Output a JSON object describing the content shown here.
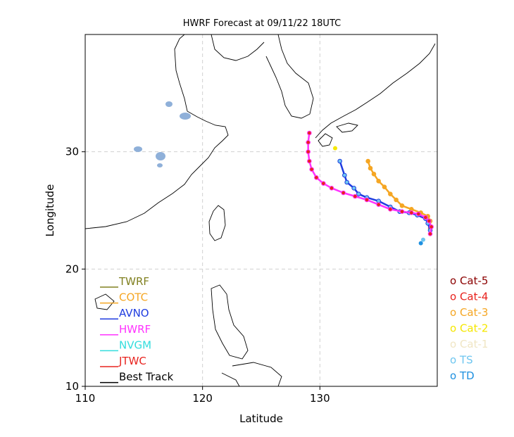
{
  "chart_data": {
    "type": "map-track",
    "title": "HWRF Forecast at 09/11/22 18UTC",
    "xlabel": "Latitude",
    "ylabel": "Longitude",
    "xlim": [
      110,
      140
    ],
    "ylim": [
      10,
      40
    ],
    "xticks": [
      110,
      120,
      130
    ],
    "yticks": [
      10,
      20,
      30
    ],
    "grid": true,
    "legend": [
      {
        "label": "TWRF",
        "color": "#808020"
      },
      {
        "label": "COTC",
        "color": "#f5a623"
      },
      {
        "label": "AVNO",
        "color": "#1f3ce0"
      },
      {
        "label": "HWRF",
        "color": "#ff33ff"
      },
      {
        "label": "NVGM",
        "color": "#33dddd"
      },
      {
        "label": "JTWC",
        "color": "#e8231e"
      },
      {
        "label": "Best Track",
        "color": "#000000"
      }
    ],
    "categories": [
      {
        "label": "o Cat-5",
        "color": "#8b0000"
      },
      {
        "label": "o Cat-4",
        "color": "#e8231e"
      },
      {
        "label": "o Cat-3",
        "color": "#f5a623"
      },
      {
        "label": "o Cat-2",
        "color": "#f5e700"
      },
      {
        "label": "o Cat-1",
        "color": "#f0e6c4"
      },
      {
        "label": "o TS",
        "color": "#6ec6f0"
      },
      {
        "label": "o TD",
        "color": "#1e90e0"
      }
    ],
    "series": [
      {
        "name": "HWRF",
        "color": "#ff33ff",
        "marker_color": "#e8231e",
        "points": [
          [
            139.4,
            23.0
          ],
          [
            139.5,
            23.6
          ],
          [
            139.3,
            24.1
          ],
          [
            139.0,
            24.4
          ],
          [
            138.4,
            24.7
          ],
          [
            137.8,
            24.8
          ],
          [
            137.0,
            24.9
          ],
          [
            136.0,
            25.1
          ],
          [
            135.0,
            25.5
          ],
          [
            134.0,
            25.9
          ],
          [
            133.0,
            26.2
          ],
          [
            132.0,
            26.5
          ],
          [
            131.0,
            26.9
          ],
          [
            130.3,
            27.3
          ],
          [
            129.7,
            27.8
          ],
          [
            129.3,
            28.5
          ],
          [
            129.1,
            29.2
          ],
          [
            129.0,
            30.0
          ],
          [
            129.0,
            30.8
          ],
          [
            129.1,
            31.6
          ]
        ]
      },
      {
        "name": "AVNO",
        "color": "#1f3ce0",
        "marker_color": "#6ec6f0",
        "points": [
          [
            139.4,
            23.3
          ],
          [
            139.2,
            23.9
          ],
          [
            139.0,
            24.3
          ],
          [
            138.3,
            24.6
          ],
          [
            137.6,
            24.8
          ],
          [
            136.8,
            24.9
          ],
          [
            136.0,
            25.3
          ],
          [
            135.0,
            25.8
          ],
          [
            134.0,
            26.1
          ],
          [
            133.3,
            26.4
          ],
          [
            132.9,
            26.9
          ],
          [
            132.3,
            27.4
          ],
          [
            132.1,
            28.0
          ],
          [
            131.7,
            29.2
          ]
        ]
      },
      {
        "name": "COTC",
        "color": "#f5a623",
        "marker_color": "#f5a623",
        "points": [
          [
            139.4,
            23.5
          ],
          [
            139.4,
            24.1
          ],
          [
            139.2,
            24.5
          ],
          [
            138.6,
            24.8
          ],
          [
            137.8,
            25.1
          ],
          [
            137.0,
            25.4
          ],
          [
            136.5,
            25.9
          ],
          [
            136.0,
            26.4
          ],
          [
            135.5,
            27.0
          ],
          [
            135.0,
            27.5
          ],
          [
            134.6,
            28.1
          ],
          [
            134.3,
            28.6
          ],
          [
            134.1,
            29.2
          ]
        ]
      }
    ],
    "extra_points": [
      {
        "lon": 131.3,
        "lat": 30.3,
        "color": "#f5e700"
      },
      {
        "lon": 138.6,
        "lat": 22.2,
        "color": "#1e90e0"
      },
      {
        "lon": 138.8,
        "lat": 22.5,
        "color": "#6ec6f0"
      }
    ]
  }
}
